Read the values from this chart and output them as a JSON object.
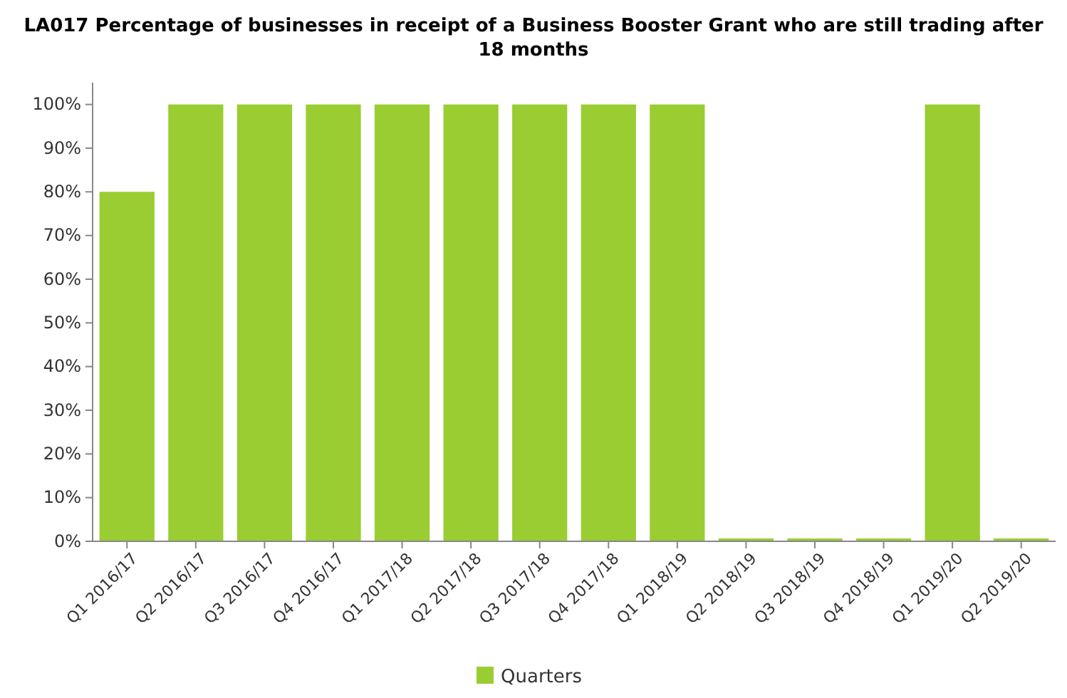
{
  "chart_data": {
    "type": "bar",
    "title": "LA017 Percentage of businesses in receipt of a Business Booster Grant who are still trading after 18 months",
    "categories": [
      "Q1 2016/17",
      "Q2 2016/17",
      "Q3 2016/17",
      "Q4 2016/17",
      "Q1 2017/18",
      "Q2 2017/18",
      "Q3 2017/18",
      "Q4 2017/18",
      "Q1 2018/19",
      "Q2 2018/19",
      "Q3 2018/19",
      "Q4 2018/19",
      "Q1 2019/20",
      "Q2 2019/20"
    ],
    "series": [
      {
        "name": "Quarters",
        "color": "#9acd32",
        "values": [
          80,
          100,
          100,
          100,
          100,
          100,
          100,
          100,
          100,
          0,
          0,
          0,
          100,
          0
        ]
      }
    ],
    "ylim": [
      0,
      105
    ],
    "yticks": [
      {
        "value": 0,
        "label": "0%"
      },
      {
        "value": 10,
        "label": "10%"
      },
      {
        "value": 20,
        "label": "20%"
      },
      {
        "value": 30,
        "label": "30%"
      },
      {
        "value": 40,
        "label": "40%"
      },
      {
        "value": 50,
        "label": "50%"
      },
      {
        "value": 60,
        "label": "60%"
      },
      {
        "value": 70,
        "label": "70%"
      },
      {
        "value": 80,
        "label": "80%"
      },
      {
        "value": 90,
        "label": "90%"
      },
      {
        "value": 100,
        "label": "100%"
      }
    ],
    "grid": false,
    "legend": "bottom"
  }
}
